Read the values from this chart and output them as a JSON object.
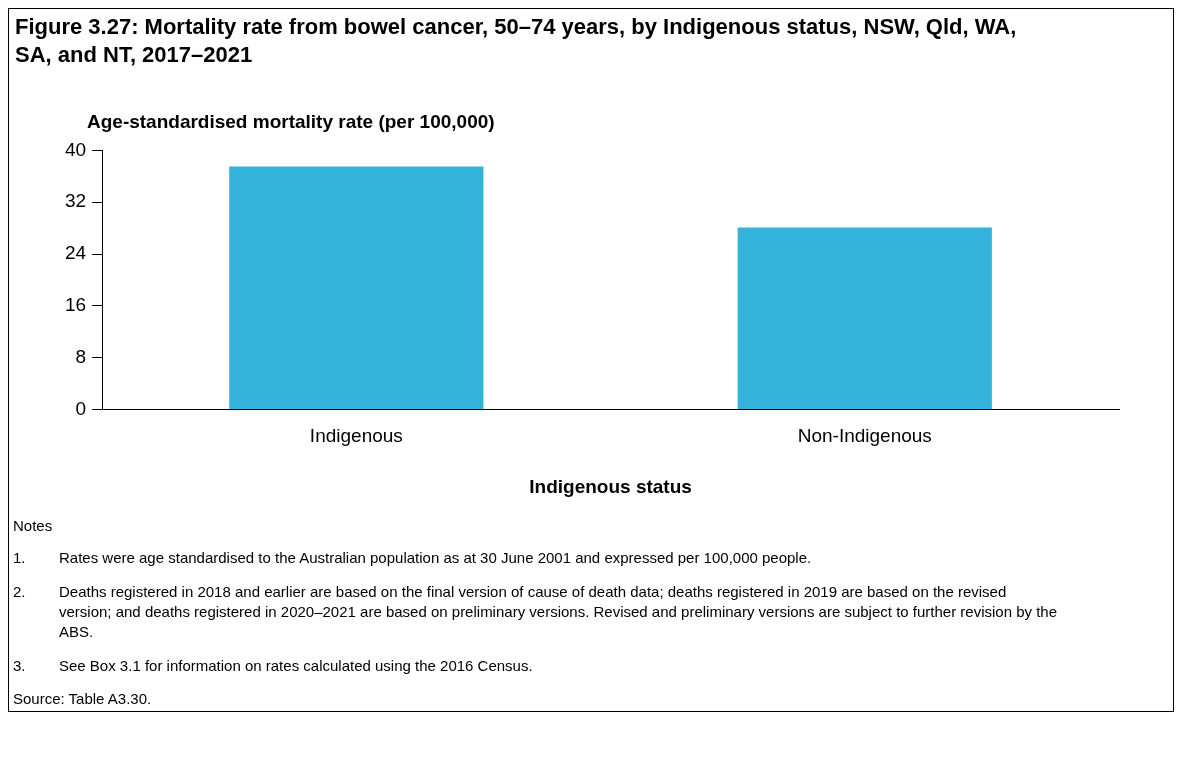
{
  "chart_data": {
    "type": "bar",
    "title": "Figure 3.27: Mortality rate from bowel cancer, 50–74 years, by Indigenous status, NSW, Qld, WA, SA, and NT, 2017–2021",
    "ylabel": "Age-standardised mortality rate (per 100,000)",
    "xlabel": "Indigenous status",
    "categories": [
      "Indigenous",
      "Non-Indigenous"
    ],
    "values": [
      37.5,
      28.1
    ],
    "color": "#33b3dc",
    "ylim": [
      0,
      40
    ],
    "yticks": [
      0,
      8,
      16,
      24,
      32,
      40
    ],
    "grid": false,
    "annotations": [
      "Notes",
      "1. Rates were age standardised to the Australian population as at 30 June 2001 and expressed per 100,000 people.",
      "2. Deaths registered in 2018 and earlier are based on the final version of cause of death data; deaths registered in 2019 are based on the revised version; and deaths registered in 2020–2021 are based on preliminary versions. Revised and preliminary versions are subject to further revision by the ABS.",
      "3. See Box 3.1 for information on rates calculated using the 2016 Census.",
      "Source: Table A3.30."
    ]
  }
}
